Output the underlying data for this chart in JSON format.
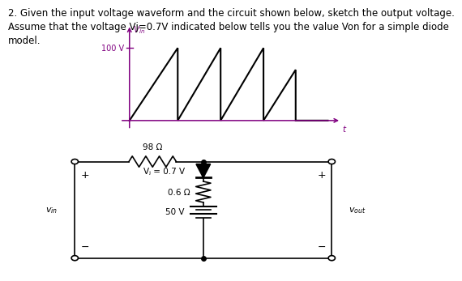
{
  "title_text": "2. Given the input voltage waveform and the circuit shown below, sketch the output voltage.\nAssume that the voltage Vj=0.7V indicated below tells you the value Von for a simple diode\nmodel.",
  "title_fontsize": 8.5,
  "bg_color": "#ffffff",
  "arrow_color": "#800080",
  "waveform_x": [
    0,
    0.9,
    0.9,
    1.7,
    1.7,
    2.5,
    2.5,
    3.1,
    3.1,
    3.7
  ],
  "waveform_y": [
    0,
    1.0,
    0,
    1.0,
    0,
    1.0,
    0,
    0.7,
    0,
    0
  ],
  "circuit": {
    "resistor_label": "98 Ω",
    "diode_label": "Vⱼ = 0.7 V",
    "r2_label": "0.6 Ω",
    "battery_label": "50 V",
    "vin_label": "vᴵⁿ",
    "vout_label": "vₒᵘₜ"
  }
}
